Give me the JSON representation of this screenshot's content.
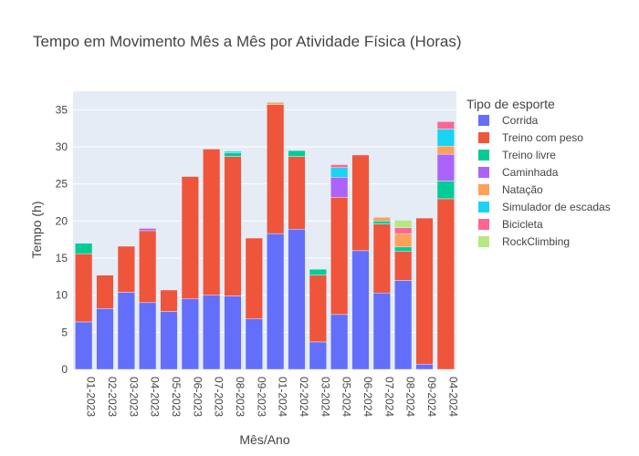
{
  "chart_data": {
    "type": "bar",
    "barmode": "stack",
    "title": "Tempo em Movimento Mês a Mês por Atividade Física (Horas)",
    "xlabel": "Mês/Ano",
    "ylabel": "Tempo (h)",
    "ylim": [
      0,
      37.5
    ],
    "yticks": [
      0,
      5,
      10,
      15,
      20,
      25,
      30,
      35
    ],
    "grid": true,
    "legend": {
      "title": "Tipo de esporte",
      "position": "right"
    },
    "categories": [
      "01-2023",
      "02-2023",
      "03-2023",
      "04-2023",
      "05-2023",
      "06-2023",
      "07-2023",
      "08-2023",
      "09-2023",
      "01-2024",
      "02-2024",
      "03-2024",
      "05-2024",
      "06-2024",
      "07-2024",
      "08-2024",
      "09-2024",
      "04-2024"
    ],
    "series": [
      {
        "name": "Corrida",
        "color": "#636efa",
        "values": [
          6.4,
          8.2,
          10.4,
          9.0,
          7.8,
          9.5,
          10.0,
          9.9,
          6.8,
          18.3,
          18.9,
          3.7,
          7.4,
          16.0,
          10.3,
          12.0,
          0.7,
          0
        ]
      },
      {
        "name": "Treino com peso",
        "color": "#ef553b",
        "values": [
          9.2,
          4.5,
          6.2,
          9.7,
          2.9,
          16.5,
          19.7,
          18.8,
          10.9,
          17.4,
          9.8,
          9.0,
          15.8,
          12.9,
          9.3,
          3.9,
          19.7,
          23.0
        ]
      },
      {
        "name": "Treino livre",
        "color": "#00cc96",
        "values": [
          1.4,
          0,
          0,
          0,
          0,
          0,
          0,
          0.5,
          0,
          0,
          0.8,
          0.8,
          0,
          0,
          0.4,
          0.6,
          0,
          2.4
        ]
      },
      {
        "name": "Caminhada",
        "color": "#ab63fa",
        "values": [
          0,
          0,
          0,
          0.3,
          0,
          0,
          0,
          0,
          0,
          0,
          0,
          0,
          2.7,
          0,
          0,
          0,
          0,
          3.6
        ]
      },
      {
        "name": "Natação",
        "color": "#ffa15a",
        "values": [
          0,
          0,
          0,
          0,
          0,
          0,
          0,
          0,
          0,
          0.3,
          0,
          0,
          0,
          0,
          0.5,
          1.8,
          0,
          1.1
        ]
      },
      {
        "name": "Simulador de escadas",
        "color": "#19d3f3",
        "values": [
          0,
          0,
          0,
          0,
          0,
          0,
          0,
          0.2,
          0,
          0,
          0,
          0,
          1.3,
          0,
          0,
          0,
          0,
          2.3
        ]
      },
      {
        "name": "Bicicleta",
        "color": "#ff6692",
        "values": [
          0,
          0,
          0,
          0,
          0,
          0,
          0,
          0,
          0,
          0,
          0,
          0,
          0.4,
          0,
          0,
          0.8,
          0,
          1.0
        ]
      },
      {
        "name": "RockClimbing",
        "color": "#b6e880",
        "values": [
          0,
          0,
          0,
          0,
          0,
          0,
          0,
          0,
          0,
          0,
          0,
          0,
          0,
          0,
          0,
          1.0,
          0,
          0
        ]
      }
    ]
  },
  "colors": {
    "plot_bg": "#e5ecf6",
    "grid": "#ffffff",
    "text": "#444444"
  }
}
